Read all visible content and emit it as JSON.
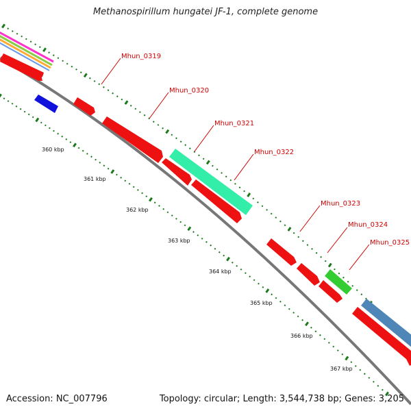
{
  "title": "Methanospirillum hungatei JF-1, complete genome",
  "footer": {
    "accession": "Accession: NC_007796",
    "summary": "Topology: circular; Length: 3,544,738 bp; Genes: 3,205"
  },
  "colors": {
    "backbone": "#888888",
    "tick_dots": "#1a7a1a",
    "label_text": "#cc0000",
    "callout_line": "#cc0000",
    "gene_red": "#ee1111",
    "gene_blue": "#1111dd",
    "gene_aqua": "#33eea8",
    "gene_green": "#33cc33",
    "gene_steel": "#4f86b8"
  },
  "scale_labels": [
    "360 kbp",
    "361 kbp",
    "362 kbp",
    "363 kbp",
    "364 kbp",
    "365 kbp",
    "366 kbp",
    "367 kbp"
  ],
  "genes": [
    {
      "label": "Mhun_0319",
      "color": "red"
    },
    {
      "label": "Mhun_0320",
      "color": "red"
    },
    {
      "label": "Mhun_0321",
      "color": "aqua"
    },
    {
      "label": "Mhun_0322",
      "color": "red"
    },
    {
      "label": "Mhun_0323",
      "color": "red"
    },
    {
      "label": "Mhun_0324",
      "color": "green"
    },
    {
      "label": "Mhun_0325",
      "color": "steel"
    }
  ]
}
